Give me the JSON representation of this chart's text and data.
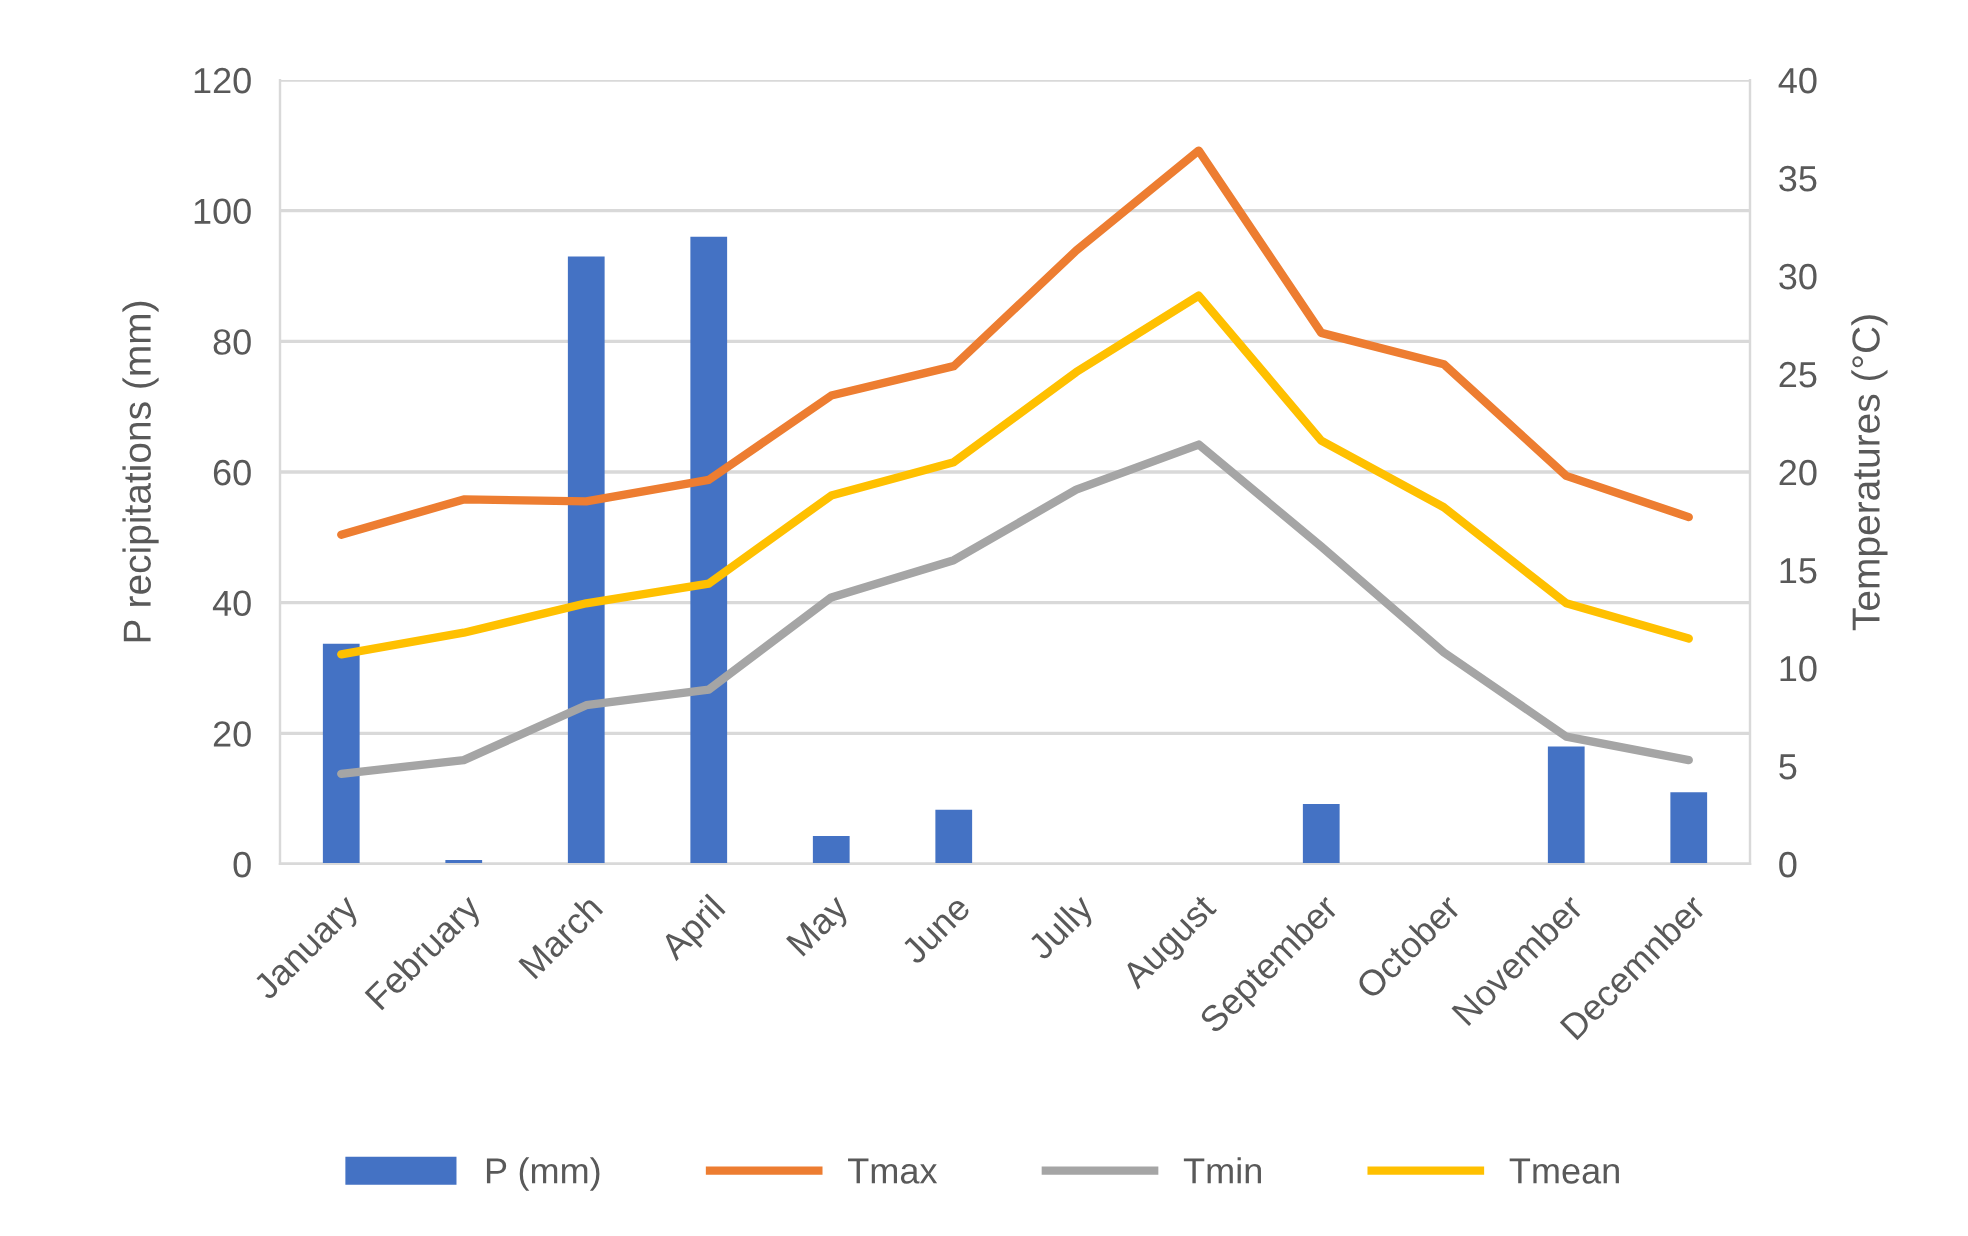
{
  "chart_data": {
    "type": "bar",
    "ylabel": "P recipitations (mm)",
    "y2label": "Temperatures (°C)",
    "categories": [
      "January",
      "February",
      "March",
      "April",
      "May",
      "June",
      "Jully",
      "August",
      "September",
      "October",
      "November",
      "Decemnber"
    ],
    "series": [
      {
        "name": "P (mm)",
        "color": "#4472c4",
        "values": [
          33.7,
          0.6,
          93,
          96,
          4.3,
          8.3,
          0,
          0,
          9.2,
          0,
          18,
          11
        ]
      },
      {
        "name": "Tmax",
        "type": "line",
        "axis": "y2",
        "color": "#ed7d31",
        "values": [
          16.8,
          18.6,
          18.5,
          19.6,
          23.9,
          25.4,
          31.3,
          36.4,
          27.1,
          25.5,
          19.8,
          17.7
        ]
      },
      {
        "name": "Tmin",
        "type": "line",
        "axis": "y2",
        "color": "#a5a5a5",
        "values": [
          4.6,
          5.3,
          8.1,
          8.9,
          13.6,
          15.5,
          19.1,
          21.4,
          16.2,
          10.8,
          6.5,
          5.3
        ]
      },
      {
        "name": "Tmean",
        "type": "line",
        "axis": "y2",
        "color": "#ffc000",
        "values": [
          10.7,
          11.8,
          13.3,
          14.3,
          18.8,
          20.5,
          25.1,
          29.0,
          21.6,
          18.2,
          13.3,
          11.5
        ]
      }
    ],
    "ylim": [
      0,
      120
    ],
    "yticks": [
      0,
      20,
      40,
      60,
      80,
      100,
      120
    ],
    "y2lim": [
      0,
      40
    ],
    "y2ticks": [
      0,
      5,
      10,
      15,
      20,
      25,
      30,
      35,
      40
    ],
    "grid": "y",
    "legend": "bottom",
    "line_style": "solid",
    "marker": "none"
  }
}
